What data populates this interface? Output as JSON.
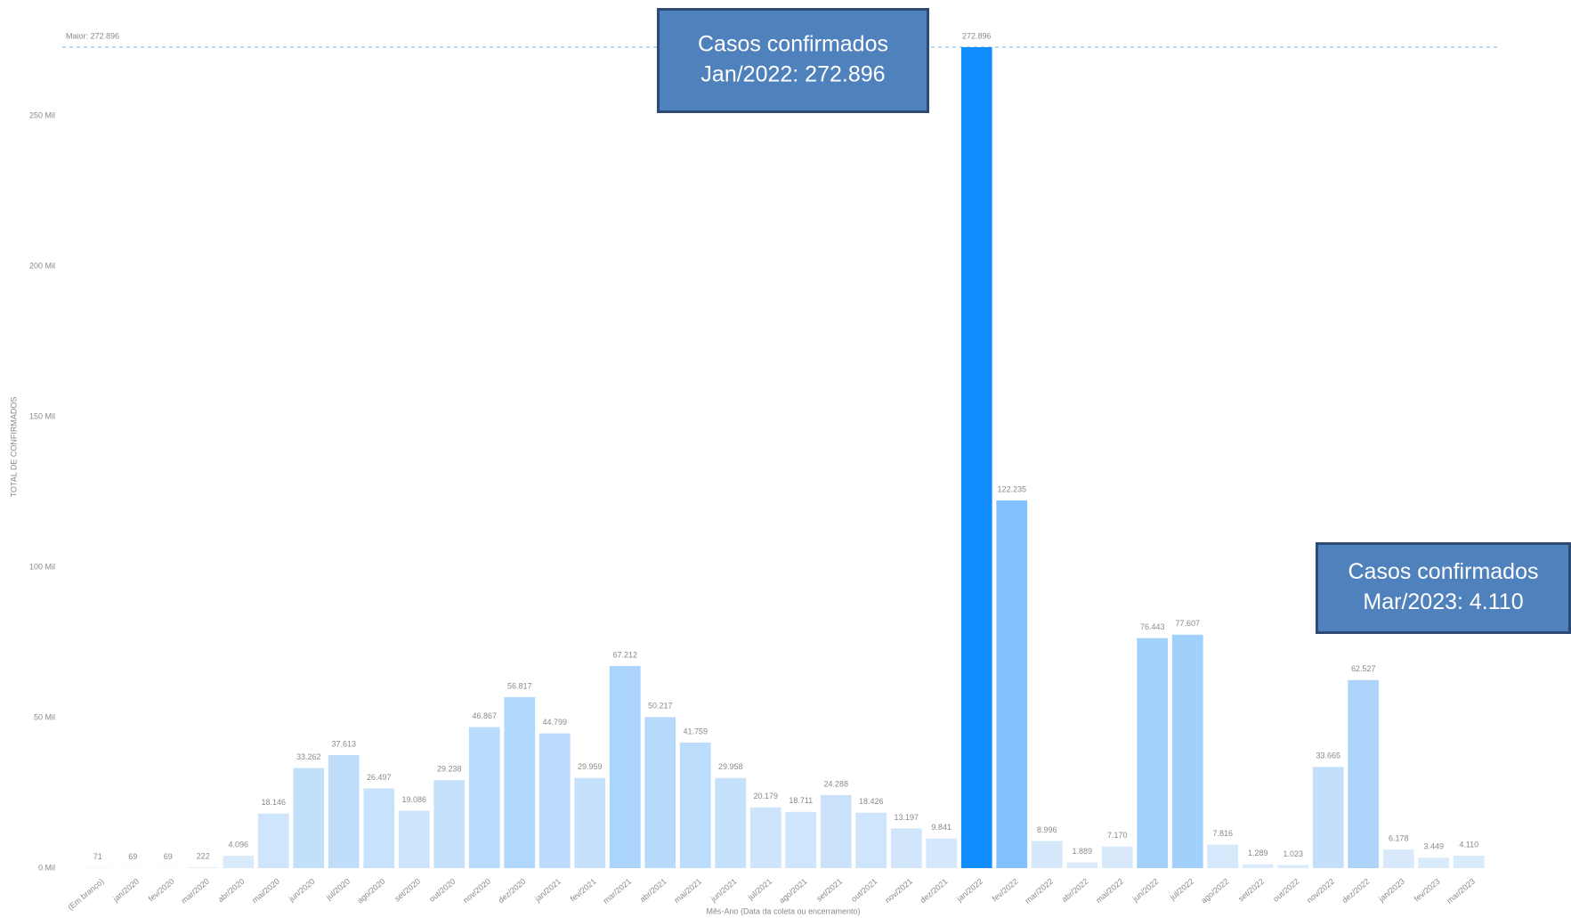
{
  "chart_data": {
    "type": "bar",
    "y_label": "TOTAL DE CONFIRMADOS",
    "x_label": "Mês-Ano (Data da coleta ou encerramento)",
    "categories": [
      "(Em branco)",
      "jan/2020",
      "fev/2020",
      "mar/2020",
      "abr/2020",
      "mai/2020",
      "jun/2020",
      "jul/2020",
      "ago/2020",
      "set/2020",
      "out/2020",
      "nov/2020",
      "dez/2020",
      "jan/2021",
      "fev/2021",
      "mar/2021",
      "abr/2021",
      "mai/2021",
      "jun/2021",
      "jul/2021",
      "ago/2021",
      "set/2021",
      "out/2021",
      "nov/2021",
      "dez/2021",
      "jan/2022",
      "fev/2022",
      "mar/2022",
      "abr/2022",
      "mai/2022",
      "jun/2022",
      "jul/2022",
      "ago/2022",
      "set/2022",
      "out/2022",
      "nov/2022",
      "dez/2022",
      "jan/2023",
      "fev/2023",
      "mar/2023"
    ],
    "values": [
      71,
      69,
      69,
      222,
      4096,
      18146,
      33262,
      37613,
      26497,
      19086,
      29238,
      46867,
      56817,
      44799,
      29959,
      67212,
      50217,
      41759,
      29958,
      20179,
      18711,
      24288,
      18426,
      13197,
      9841,
      272896,
      122235,
      8996,
      1889,
      7170,
      76443,
      77607,
      7816,
      1289,
      1023,
      33665,
      62527,
      6178,
      3449,
      4110
    ],
    "value_labels": [
      "71",
      "69",
      "69",
      "222",
      "4.096",
      "18.146",
      "33.262",
      "37.613",
      "26.497",
      "19.086",
      "29.238",
      "46.867",
      "56.817",
      "44.799",
      "29.959",
      "67.212",
      "50.217",
      "41.759",
      "29.958",
      "20.179",
      "18.711",
      "24.288",
      "18.426",
      "13.197",
      "9.841",
      "272.896",
      "122.235",
      "8.996",
      "1.889",
      "7.170",
      "76.443",
      "77.607",
      "7.816",
      "1.289",
      "1.023",
      "33.665",
      "62.527",
      "6.178",
      "3.449",
      "4.110"
    ],
    "color_range": [
      "#dcebfb",
      "#118dff"
    ],
    "ylim": [
      0,
      280000
    ],
    "yticks": [
      {
        "value": 0,
        "label": "0 Mil"
      },
      {
        "value": 50000,
        "label": "50 Mil"
      },
      {
        "value": 100000,
        "label": "100 Mil"
      },
      {
        "value": 150000,
        "label": "150 Mil"
      },
      {
        "value": 200000,
        "label": "200 Mil"
      },
      {
        "value": 250000,
        "label": "250 Mil"
      }
    ],
    "reference_line": {
      "label": "Maior: 272.896",
      "value": 272896
    },
    "annotations": [
      {
        "lines": [
          "Casos confirmados",
          "Jan/2022: 272.896"
        ],
        "category": 25
      },
      {
        "lines": [
          "Casos confirmados",
          "Mar/2023: 4.110"
        ],
        "category": 39
      }
    ]
  }
}
